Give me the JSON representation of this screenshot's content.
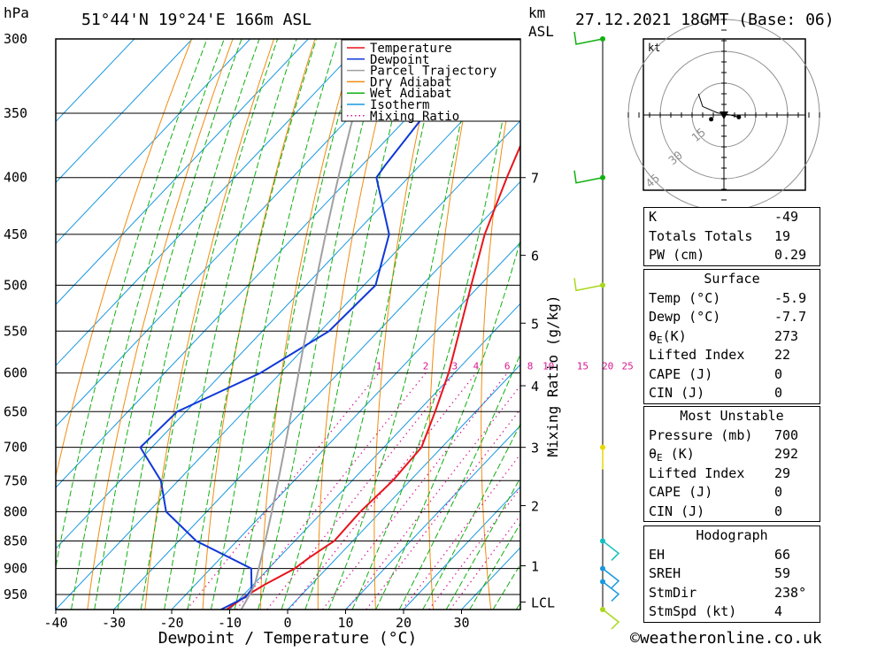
{
  "header": {
    "location": "51°44'N  19°24'E  166m  ASL",
    "datetime": "27.12.2021  18GMT  (Base: 06)",
    "pressure_unit": "hPa",
    "height_unit_line1": "km",
    "height_unit_line2": "ASL"
  },
  "footer": {
    "copyright": "©weatheronline.co.uk"
  },
  "chart_data": {
    "type": "line",
    "xlabel": "Dewpoint / Temperature (°C)",
    "ylabel": "hPa",
    "y2label": "Mixing Ratio (g/kg)",
    "xlim": [
      -40,
      40
    ],
    "ylim": [
      980,
      300
    ],
    "x_ticks": [
      -40,
      -30,
      -20,
      -10,
      0,
      10,
      20,
      30
    ],
    "pressure_levels": [
      300,
      350,
      400,
      450,
      500,
      550,
      600,
      650,
      700,
      750,
      800,
      850,
      900,
      950
    ],
    "height_ticks": [
      {
        "label": "7",
        "p": 400
      },
      {
        "label": "6",
        "p": 470
      },
      {
        "label": "5",
        "p": 541
      },
      {
        "label": "4",
        "p": 616
      },
      {
        "label": "3",
        "p": 700
      },
      {
        "label": "2",
        "p": 790
      },
      {
        "label": "1",
        "p": 895
      },
      {
        "label": "LCL",
        "p": 965
      }
    ],
    "mixing_ratio_labels": [
      "1",
      "2",
      "3",
      "4",
      "6",
      "8",
      "10",
      "15",
      "20",
      "25"
    ],
    "legend": {
      "placement": "top-right",
      "entries": [
        {
          "name": "Temperature",
          "color": "#e8141c",
          "style": "solid"
        },
        {
          "name": "Dewpoint",
          "color": "#1038d8",
          "style": "solid"
        },
        {
          "name": "Parcel Trajectory",
          "color": "#a0a0a0",
          "style": "solid"
        },
        {
          "name": "Dry Adiabat",
          "color": "#f08c10",
          "style": "solid"
        },
        {
          "name": "Wet Adiabat",
          "color": "#10b010",
          "style": "solid"
        },
        {
          "name": "Isotherm",
          "color": "#1898e0",
          "style": "solid"
        },
        {
          "name": "Mixing Ratio",
          "color": "#d81890",
          "style": "dotted"
        }
      ]
    },
    "series": [
      {
        "name": "Temperature",
        "points": [
          [
            300,
            -45.5
          ],
          [
            350,
            -38.8
          ],
          [
            400,
            -33
          ],
          [
            450,
            -27.5
          ],
          [
            500,
            -21.5
          ],
          [
            550,
            -16
          ],
          [
            600,
            -11
          ],
          [
            650,
            -7
          ],
          [
            700,
            -3.5
          ],
          [
            750,
            -3
          ],
          [
            800,
            -3.5
          ],
          [
            850,
            -3.2
          ],
          [
            880,
            -4.8
          ],
          [
            900,
            -5.5
          ],
          [
            930,
            -8
          ],
          [
            950,
            -9.3
          ],
          [
            980,
            -10.5
          ]
        ]
      },
      {
        "name": "Dewpoint",
        "points": [
          [
            300,
            -58.5
          ],
          [
            350,
            -57.5
          ],
          [
            390,
            -56
          ],
          [
            400,
            -55.5
          ],
          [
            450,
            -44
          ],
          [
            500,
            -38
          ],
          [
            550,
            -38.5
          ],
          [
            600,
            -43.5
          ],
          [
            650,
            -51.5
          ],
          [
            700,
            -52
          ],
          [
            750,
            -43
          ],
          [
            800,
            -37
          ],
          [
            850,
            -27
          ],
          [
            900,
            -13
          ],
          [
            940,
            -9.5
          ],
          [
            955,
            -9.3
          ],
          [
            980,
            -11.5
          ]
        ]
      },
      {
        "name": "Parcel Trajectory",
        "points": [
          [
            930,
            -9.8
          ],
          [
            950,
            -9
          ],
          [
            980,
            -8
          ]
        ]
      }
    ],
    "wind_barbs": [
      {
        "p": 300,
        "color": "#10b010"
      },
      {
        "p": 400,
        "color": "#10b010"
      },
      {
        "p": 500,
        "color": "#a8d818"
      },
      {
        "p": 700,
        "color": "#e8d800"
      },
      {
        "p": 850,
        "color": "#10c0c0"
      },
      {
        "p": 900,
        "color": "#1898e0"
      },
      {
        "p": 925,
        "color": "#1898e0"
      },
      {
        "p": 980,
        "color": "#a8d818"
      }
    ],
    "hodograph": {
      "unit": "kt",
      "rings": [
        "15",
        "30",
        "45"
      ],
      "trace_uv": [
        [
          -12,
          10
        ],
        [
          -10,
          4
        ],
        [
          -3,
          1
        ],
        [
          3,
          0
        ],
        [
          7,
          -1
        ]
      ],
      "storm_motion_uv": [
        0,
        0
      ],
      "point_markers_uv": [
        [
          -6,
          -2
        ],
        [
          7,
          -1
        ]
      ]
    }
  },
  "indices": {
    "top": [
      {
        "label": "K",
        "value": "-49"
      },
      {
        "label": "Totals Totals",
        "value": "19"
      },
      {
        "label": "PW (cm)",
        "value": "0.29"
      }
    ],
    "surface": {
      "title": "Surface",
      "rows": [
        {
          "label": "Temp (°C)",
          "value": "-5.9"
        },
        {
          "label": "Dewp (°C)",
          "value": "-7.7"
        },
        {
          "label_main": "θ",
          "label_sub": "E",
          "label_rest": "(K)",
          "value": "273"
        },
        {
          "label": "Lifted Index",
          "value": "22"
        },
        {
          "label": "CAPE (J)",
          "value": "0"
        },
        {
          "label": "CIN (J)",
          "value": "0"
        }
      ]
    },
    "most_unstable": {
      "title": "Most Unstable",
      "rows": [
        {
          "label": "Pressure (mb)",
          "value": "700"
        },
        {
          "label_main": "θ",
          "label_sub": "E",
          "label_rest": " (K)",
          "value": "292"
        },
        {
          "label": "Lifted Index",
          "value": "29"
        },
        {
          "label": "CAPE (J)",
          "value": "0"
        },
        {
          "label": "CIN (J)",
          "value": "0"
        }
      ]
    },
    "hodograph_box": {
      "title": "Hodograph",
      "rows": [
        {
          "label": "EH",
          "value": "66"
        },
        {
          "label": "SREH",
          "value": "59"
        },
        {
          "label": "StmDir",
          "value": "238°"
        },
        {
          "label": "StmSpd (kt)",
          "value": "4"
        }
      ]
    }
  }
}
